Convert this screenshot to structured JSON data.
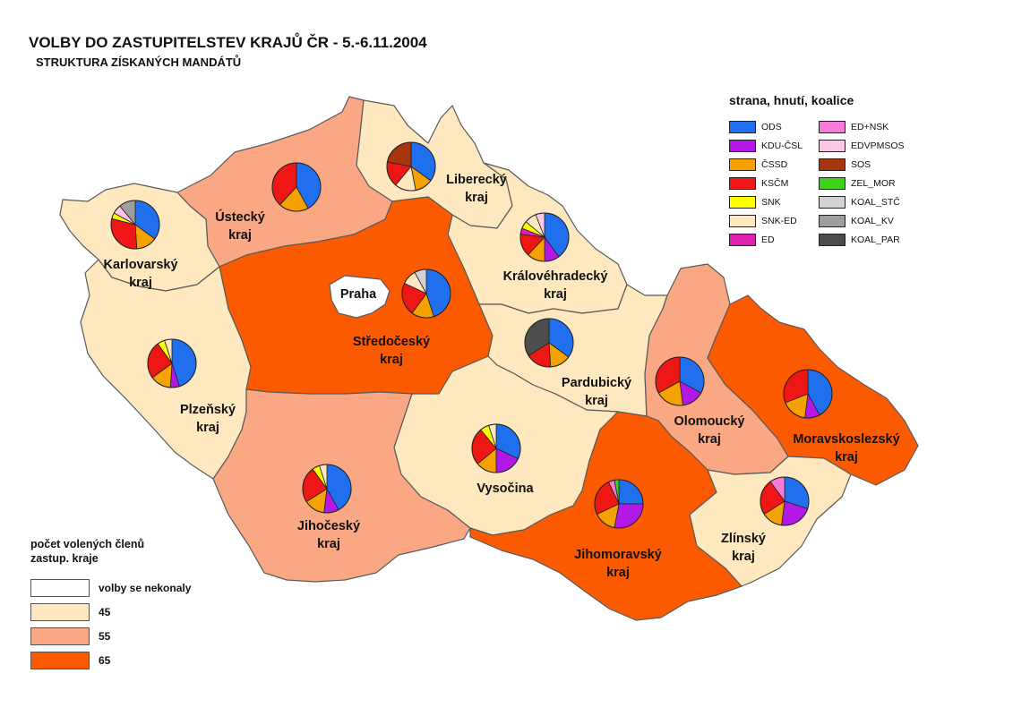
{
  "title": "VOLBY DO ZASTUPITELSTEV KRAJŮ ČR - 5.-6.11.2004",
  "subtitle": "STRUKTURA ZÍSKANÝCH MANDÁTŮ",
  "party_legend": {
    "heading": "strana, hnutí, koalice",
    "items": [
      {
        "label": "ODS",
        "color": "#1f6fef"
      },
      {
        "label": "KDU-ČSL",
        "color": "#b319e6"
      },
      {
        "label": "ČSSD",
        "color": "#f5a200"
      },
      {
        "label": "KSČM",
        "color": "#ef1616"
      },
      {
        "label": "SNK",
        "color": "#ffff00"
      },
      {
        "label": "SNK-ED",
        "color": "#fde8bf"
      },
      {
        "label": "ED",
        "color": "#e020b0"
      },
      {
        "label": "ED+NSK",
        "color": "#f77ad6"
      },
      {
        "label": "EDVPMSOS",
        "color": "#fcc8e8"
      },
      {
        "label": "SOS",
        "color": "#a7360e"
      },
      {
        "label": "ZEL_MOR",
        "color": "#3cd21a"
      },
      {
        "label": "KOAL_STČ",
        "color": "#d3d3d3"
      },
      {
        "label": "KOAL_KV",
        "color": "#9e9e9e"
      },
      {
        "label": "KOAL_PAR",
        "color": "#4d4d4d"
      }
    ]
  },
  "scale_legend": {
    "heading_line1": "počet volených členů",
    "heading_line2": "zastup. kraje",
    "items": [
      {
        "label": "volby se nekonaly",
        "color": "#ffffff"
      },
      {
        "label": "45",
        "color": "#fde8bf"
      },
      {
        "label": "55",
        "color": "#f9a883"
      },
      {
        "label": "65",
        "color": "#fc5a00"
      }
    ]
  },
  "regions": [
    {
      "id": "karlovarsky",
      "name_line1": "Karlovarský",
      "name_line2": "kraj",
      "seats": "45",
      "fill": "#fde8bf"
    },
    {
      "id": "ustecky",
      "name_line1": "Ústecký",
      "name_line2": "kraj",
      "seats": "55",
      "fill": "#f9a883"
    },
    {
      "id": "liberecky",
      "name_line1": "Liberecký",
      "name_line2": "kraj",
      "seats": "45",
      "fill": "#fde8bf"
    },
    {
      "id": "kralovehradecky",
      "name_line1": "Královéhradecký",
      "name_line2": "kraj",
      "seats": "45",
      "fill": "#fde8bf"
    },
    {
      "id": "stredocesky",
      "name_line1": "Středočeský",
      "name_line2": "kraj",
      "seats": "65",
      "fill": "#fc5a00"
    },
    {
      "id": "praha",
      "name_line1": "Praha",
      "name_line2": "",
      "seats": "volby se nekonaly",
      "fill": "#ffffff"
    },
    {
      "id": "plzensky",
      "name_line1": "Plzeňský",
      "name_line2": "kraj",
      "seats": "45",
      "fill": "#fde8bf"
    },
    {
      "id": "pardubicky",
      "name_line1": "Pardubický",
      "name_line2": "kraj",
      "seats": "45",
      "fill": "#fde8bf"
    },
    {
      "id": "vysocina",
      "name_line1": "Vysočina",
      "name_line2": "",
      "seats": "45",
      "fill": "#fde8bf"
    },
    {
      "id": "jihocesky",
      "name_line1": "Jihočeský",
      "name_line2": "kraj",
      "seats": "55",
      "fill": "#f9a883"
    },
    {
      "id": "olomoucky",
      "name_line1": "Olomoucký",
      "name_line2": "kraj",
      "seats": "55",
      "fill": "#f9a883"
    },
    {
      "id": "moravskoslezsky",
      "name_line1": "Moravskoslezský",
      "name_line2": "kraj",
      "seats": "65",
      "fill": "#fc5a00"
    },
    {
      "id": "jihomoravsky",
      "name_line1": "Jihomoravský",
      "name_line2": "kraj",
      "seats": "65",
      "fill": "#fc5a00"
    },
    {
      "id": "zlinsky",
      "name_line1": "Zlínský",
      "name_line2": "kraj",
      "seats": "45",
      "fill": "#fde8bf"
    }
  ],
  "seat_pies": [
    {
      "region": "karlovarsky",
      "slices": [
        {
          "party": "ODS",
          "share": 0.35
        },
        {
          "party": "ČSSD",
          "share": 0.14
        },
        {
          "party": "KSČM",
          "share": 0.3
        },
        {
          "party": "SNK",
          "share": 0.04
        },
        {
          "party": "EDVPMSOS",
          "share": 0.06
        },
        {
          "party": "KOAL_KV",
          "share": 0.11
        }
      ]
    },
    {
      "region": "ustecky",
      "slices": [
        {
          "party": "ODS",
          "share": 0.42
        },
        {
          "party": "ČSSD",
          "share": 0.2
        },
        {
          "party": "KSČM",
          "share": 0.38
        }
      ]
    },
    {
      "region": "liberecky",
      "slices": [
        {
          "party": "ODS",
          "share": 0.35
        },
        {
          "party": "ČSSD",
          "share": 0.12
        },
        {
          "party": "SNK-ED",
          "share": 0.14
        },
        {
          "party": "KSČM",
          "share": 0.17
        },
        {
          "party": "SOS",
          "share": 0.22
        }
      ]
    },
    {
      "region": "kralovehradecky",
      "slices": [
        {
          "party": "ODS",
          "share": 0.4
        },
        {
          "party": "KDU-ČSL",
          "share": 0.1
        },
        {
          "party": "ČSSD",
          "share": 0.12
        },
        {
          "party": "KSČM",
          "share": 0.15
        },
        {
          "party": "ED",
          "share": 0.04
        },
        {
          "party": "SNK",
          "share": 0.05
        },
        {
          "party": "SNK-ED",
          "share": 0.08
        },
        {
          "party": "EDVPMSOS",
          "share": 0.06
        }
      ]
    },
    {
      "region": "stredocesky",
      "slices": [
        {
          "party": "ODS",
          "share": 0.45
        },
        {
          "party": "ČSSD",
          "share": 0.15
        },
        {
          "party": "KSČM",
          "share": 0.22
        },
        {
          "party": "SNK-ED",
          "share": 0.1
        },
        {
          "party": "KOAL_STČ",
          "share": 0.08
        }
      ]
    },
    {
      "region": "plzensky",
      "slices": [
        {
          "party": "ODS",
          "share": 0.45
        },
        {
          "party": "KDU-ČSL",
          "share": 0.06
        },
        {
          "party": "ČSSD",
          "share": 0.14
        },
        {
          "party": "KSČM",
          "share": 0.25
        },
        {
          "party": "SNK",
          "share": 0.05
        },
        {
          "party": "SNK-ED",
          "share": 0.05
        }
      ]
    },
    {
      "region": "pardubicky",
      "slices": [
        {
          "party": "ODS",
          "share": 0.35
        },
        {
          "party": "ČSSD",
          "share": 0.14
        },
        {
          "party": "KSČM",
          "share": 0.17
        },
        {
          "party": "KOAL_PAR",
          "share": 0.34
        }
      ]
    },
    {
      "region": "vysocina",
      "slices": [
        {
          "party": "ODS",
          "share": 0.32
        },
        {
          "party": "KDU-ČSL",
          "share": 0.18
        },
        {
          "party": "ČSSD",
          "share": 0.14
        },
        {
          "party": "KSČM",
          "share": 0.25
        },
        {
          "party": "SNK",
          "share": 0.06
        },
        {
          "party": "SNK-ED",
          "share": 0.05
        }
      ]
    },
    {
      "region": "jihocesky",
      "slices": [
        {
          "party": "ODS",
          "share": 0.42
        },
        {
          "party": "KDU-ČSL",
          "share": 0.1
        },
        {
          "party": "ČSSD",
          "share": 0.14
        },
        {
          "party": "KSČM",
          "share": 0.24
        },
        {
          "party": "SNK",
          "share": 0.05
        },
        {
          "party": "SNK-ED",
          "share": 0.05
        }
      ]
    },
    {
      "region": "olomoucky",
      "slices": [
        {
          "party": "ODS",
          "share": 0.33
        },
        {
          "party": "KDU-ČSL",
          "share": 0.15
        },
        {
          "party": "ČSSD",
          "share": 0.19
        },
        {
          "party": "KSČM",
          "share": 0.33
        }
      ]
    },
    {
      "region": "moravskoslezsky",
      "slices": [
        {
          "party": "ODS",
          "share": 0.42
        },
        {
          "party": "KDU-ČSL",
          "share": 0.1
        },
        {
          "party": "ČSSD",
          "share": 0.17
        },
        {
          "party": "KSČM",
          "share": 0.31
        }
      ]
    },
    {
      "region": "jihomoravsky",
      "slices": [
        {
          "party": "ODS",
          "share": 0.25
        },
        {
          "party": "KDU-ČSL",
          "share": 0.28
        },
        {
          "party": "ČSSD",
          "share": 0.15
        },
        {
          "party": "KSČM",
          "share": 0.25
        },
        {
          "party": "ED+NSK",
          "share": 0.04
        },
        {
          "party": "ZEL_MOR",
          "share": 0.03
        }
      ]
    },
    {
      "region": "zlinsky",
      "slices": [
        {
          "party": "ODS",
          "share": 0.3
        },
        {
          "party": "KDU-ČSL",
          "share": 0.22
        },
        {
          "party": "ČSSD",
          "share": 0.14
        },
        {
          "party": "KSČM",
          "share": 0.24
        },
        {
          "party": "ED+NSK",
          "share": 0.1
        }
      ]
    }
  ]
}
